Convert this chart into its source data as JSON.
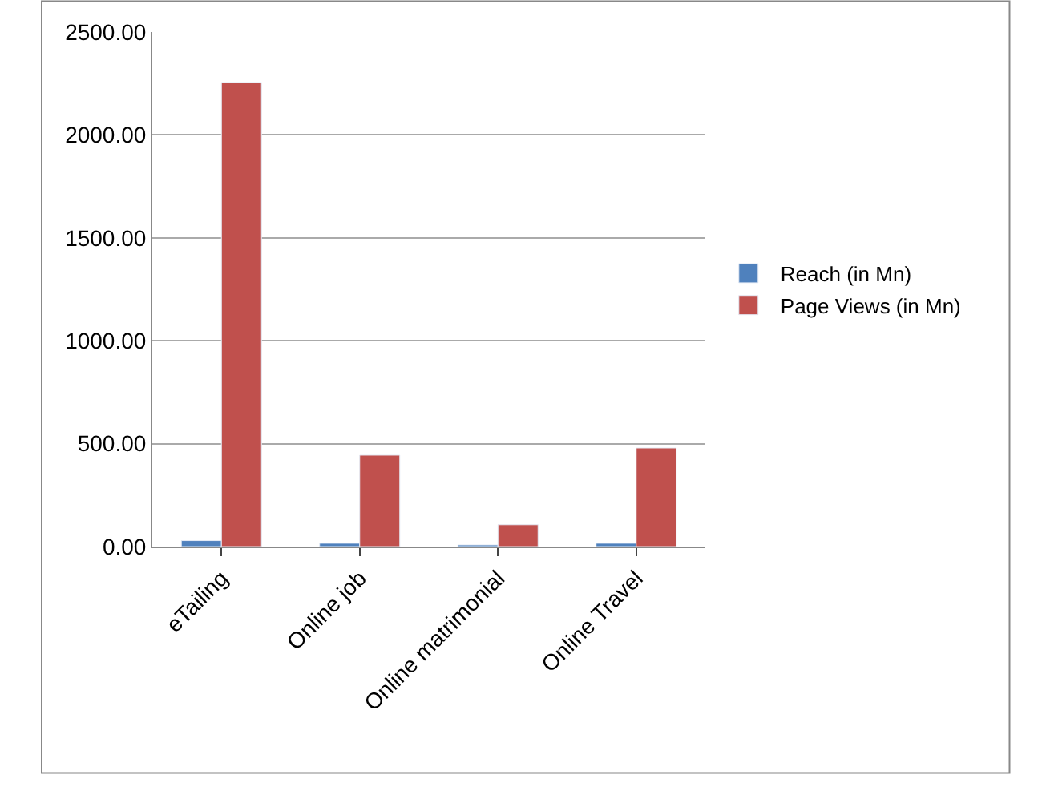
{
  "chart_data": {
    "type": "bar",
    "categories": [
      "eTailing",
      "Online job",
      "Online matrimonial",
      "Online Travel"
    ],
    "series": [
      {
        "name": "Reach (in Mn)",
        "color": "#4f81bd",
        "values": [
          29,
          16,
          8,
          16
        ]
      },
      {
        "name": "Page Views (in Mn)",
        "color": "#c0504d",
        "values": [
          2255,
          444,
          106,
          479
        ]
      }
    ],
    "ylim": [
      0,
      2500
    ],
    "yticks": [
      {
        "value": 0,
        "label": "0.00"
      },
      {
        "value": 500,
        "label": "500.00"
      },
      {
        "value": 1000,
        "label": "1000.00"
      },
      {
        "value": 1500,
        "label": "1500.00"
      },
      {
        "value": 2000,
        "label": "2000.00"
      },
      {
        "value": 2500,
        "label": "2500.00"
      }
    ],
    "grid": "y",
    "legend": "right"
  }
}
